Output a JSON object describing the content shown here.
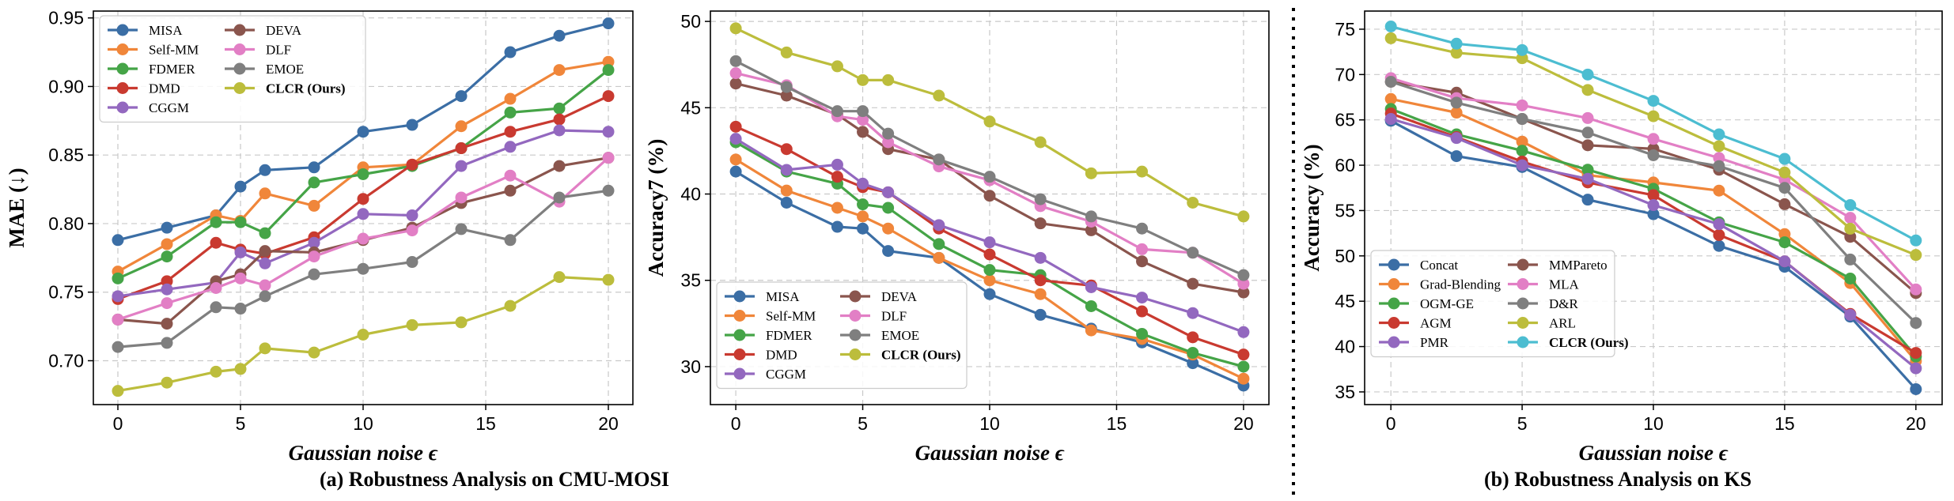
{
  "colors": {
    "blue": "#3b6ea5",
    "orange": "#f0863a",
    "green": "#45a447",
    "red": "#c93a30",
    "purple": "#9368bf",
    "brown": "#8a554d",
    "pink": "#e27fc5",
    "gray": "#7f7f7f",
    "olive": "#bcbd3c",
    "cyan": "#4cbdd1"
  },
  "captions": {
    "a": "(a) Robustness Analysis on CMU-MOSI",
    "b": "(b) Robustness Analysis on KS"
  },
  "chart_data": [
    {
      "id": "mae",
      "type": "line",
      "title": "",
      "xlabel": "Gaussian noise ϵ",
      "ylabel": "MAE (↓)",
      "xlim": [
        -1,
        21
      ],
      "ylim": [
        0.668,
        0.955
      ],
      "xticks": [
        0,
        5,
        10,
        15,
        20
      ],
      "yticks": [
        0.7,
        0.75,
        0.8,
        0.85,
        0.9,
        0.95
      ],
      "ytick_labels": [
        "0.70",
        "0.75",
        "0.80",
        "0.85",
        "0.90",
        "0.95"
      ],
      "legend_position": "top-left",
      "legend_cols": 2,
      "x": [
        0,
        2,
        4,
        5,
        6,
        8,
        10,
        12,
        14,
        16,
        18,
        20
      ],
      "series": [
        {
          "name": "MISA",
          "color": "blue",
          "values": [
            0.788,
            0.797,
            0.806,
            0.827,
            0.839,
            0.841,
            0.867,
            0.872,
            0.893,
            0.925,
            0.937,
            0.946
          ]
        },
        {
          "name": "Self-MM",
          "color": "orange",
          "values": [
            0.765,
            0.785,
            0.806,
            0.802,
            0.822,
            0.813,
            0.841,
            0.843,
            0.871,
            0.891,
            0.912,
            0.918
          ]
        },
        {
          "name": "FDMER",
          "color": "green",
          "values": [
            0.76,
            0.776,
            0.801,
            0.801,
            0.793,
            0.83,
            0.836,
            0.842,
            0.855,
            0.881,
            0.884,
            0.912
          ]
        },
        {
          "name": "DMD",
          "color": "red",
          "values": [
            0.745,
            0.758,
            0.786,
            0.781,
            0.778,
            0.79,
            0.818,
            0.843,
            0.855,
            0.867,
            0.876,
            0.893
          ]
        },
        {
          "name": "CGGM",
          "color": "purple",
          "values": [
            0.747,
            0.752,
            0.757,
            0.779,
            0.771,
            0.786,
            0.807,
            0.806,
            0.842,
            0.856,
            0.868,
            0.867
          ]
        },
        {
          "name": "DEVA",
          "color": "brown",
          "values": [
            0.73,
            0.727,
            0.758,
            0.763,
            0.78,
            0.779,
            0.788,
            0.797,
            0.815,
            0.824,
            0.842,
            0.848
          ]
        },
        {
          "name": "DLF",
          "color": "pink",
          "values": [
            0.73,
            0.742,
            0.753,
            0.76,
            0.755,
            0.776,
            0.789,
            0.795,
            0.819,
            0.835,
            0.816,
            0.848
          ]
        },
        {
          "name": "EMOE",
          "color": "gray",
          "values": [
            0.71,
            0.713,
            0.739,
            0.738,
            0.747,
            0.763,
            0.767,
            0.772,
            0.796,
            0.788,
            0.819,
            0.824
          ]
        },
        {
          "name": "CLCR (Ours)",
          "color": "olive",
          "bold": true,
          "values": [
            0.678,
            0.684,
            0.692,
            0.694,
            0.709,
            0.706,
            0.719,
            0.726,
            0.728,
            0.74,
            0.761,
            0.759
          ]
        }
      ]
    },
    {
      "id": "acc7",
      "type": "line",
      "title": "",
      "xlabel": "Gaussian noise ϵ",
      "ylabel": "Accuracy7 (%)",
      "xlim": [
        -1,
        21
      ],
      "ylim": [
        27.8,
        50.6
      ],
      "xticks": [
        0,
        5,
        10,
        15,
        20
      ],
      "yticks": [
        30,
        35,
        40,
        45,
        50
      ],
      "ytick_labels": [
        "30",
        "35",
        "40",
        "45",
        "50"
      ],
      "legend_position": "bottom-left",
      "legend_cols": 2,
      "x": [
        0,
        2,
        4,
        5,
        6,
        8,
        10,
        12,
        14,
        16,
        18,
        20
      ],
      "series": [
        {
          "name": "MISA",
          "color": "blue",
          "values": [
            41.3,
            39.5,
            38.1,
            38.0,
            36.7,
            36.3,
            34.2,
            33.0,
            32.2,
            31.4,
            30.2,
            28.9
          ]
        },
        {
          "name": "Self-MM",
          "color": "orange",
          "values": [
            42.0,
            40.2,
            39.2,
            38.7,
            38.0,
            36.3,
            35.0,
            34.2,
            32.1,
            31.6,
            30.7,
            29.3
          ]
        },
        {
          "name": "FDMER",
          "color": "green",
          "values": [
            43.0,
            41.3,
            40.6,
            39.4,
            39.2,
            37.1,
            35.6,
            35.3,
            33.5,
            31.9,
            30.8,
            30.0
          ]
        },
        {
          "name": "DMD",
          "color": "red",
          "values": [
            43.9,
            42.6,
            41.0,
            40.4,
            40.1,
            38.0,
            36.5,
            35.0,
            34.7,
            33.2,
            31.7,
            30.7
          ]
        },
        {
          "name": "CGGM",
          "color": "purple",
          "values": [
            43.2,
            41.4,
            41.7,
            40.6,
            40.1,
            38.2,
            37.2,
            36.3,
            34.6,
            34.0,
            33.1,
            32.0
          ]
        },
        {
          "name": "DEVA",
          "color": "brown",
          "values": [
            46.4,
            45.7,
            44.6,
            43.6,
            42.6,
            42.0,
            39.9,
            38.3,
            37.9,
            36.1,
            34.8,
            34.3
          ]
        },
        {
          "name": "DLF",
          "color": "pink",
          "values": [
            47.0,
            46.3,
            44.5,
            44.3,
            43.0,
            41.6,
            40.8,
            39.3,
            38.4,
            36.8,
            36.6,
            34.8
          ]
        },
        {
          "name": "EMOE",
          "color": "gray",
          "values": [
            47.7,
            46.2,
            44.8,
            44.8,
            43.5,
            42.0,
            41.0,
            39.7,
            38.7,
            38.0,
            36.6,
            35.3
          ]
        },
        {
          "name": "CLCR (Ours)",
          "color": "olive",
          "bold": true,
          "values": [
            49.6,
            48.2,
            47.4,
            46.6,
            46.6,
            45.7,
            44.2,
            43.0,
            41.2,
            41.3,
            39.5,
            38.7
          ]
        }
      ]
    },
    {
      "id": "ks",
      "type": "line",
      "title": "",
      "xlabel": "Gaussian noise ϵ",
      "ylabel": "Accuracy (%)",
      "xlim": [
        -1,
        21
      ],
      "ylim": [
        33.6,
        77.0
      ],
      "xticks": [
        0,
        5,
        10,
        15,
        20
      ],
      "yticks": [
        35,
        40,
        45,
        50,
        55,
        60,
        65,
        70,
        75
      ],
      "ytick_labels": [
        "35",
        "40",
        "45",
        "50",
        "55",
        "60",
        "65",
        "70",
        "75"
      ],
      "legend_position": "bottom-left",
      "legend_cols": 2,
      "x": [
        0,
        2.5,
        5,
        7.5,
        10,
        12.5,
        15,
        17.5,
        20
      ],
      "series": [
        {
          "name": "Concat",
          "color": "blue",
          "values": [
            64.9,
            61.0,
            59.8,
            56.2,
            54.6,
            51.1,
            48.8,
            43.3,
            35.3
          ]
        },
        {
          "name": "Grad-Blending",
          "color": "orange",
          "values": [
            67.3,
            65.8,
            62.6,
            58.9,
            58.1,
            57.2,
            52.4,
            47.0,
            38.4
          ]
        },
        {
          "name": "OGM-GE",
          "color": "green",
          "values": [
            66.2,
            63.4,
            61.6,
            59.5,
            57.4,
            53.7,
            51.5,
            47.5,
            38.9
          ]
        },
        {
          "name": "AGM",
          "color": "red",
          "values": [
            65.7,
            63.1,
            60.4,
            58.1,
            56.7,
            52.3,
            49.4,
            43.6,
            39.3
          ]
        },
        {
          "name": "PMR",
          "color": "purple",
          "values": [
            65.1,
            63.0,
            60.0,
            58.5,
            55.6,
            53.5,
            49.4,
            43.5,
            37.6
          ]
        },
        {
          "name": "MMPareto",
          "color": "brown",
          "values": [
            69.2,
            68.0,
            65.1,
            62.2,
            61.8,
            59.5,
            55.7,
            52.1,
            45.9
          ]
        },
        {
          "name": "MLA",
          "color": "pink",
          "values": [
            69.6,
            67.4,
            66.6,
            65.2,
            62.9,
            60.8,
            58.4,
            54.2,
            46.3
          ]
        },
        {
          "name": "D&R",
          "color": "gray",
          "values": [
            69.2,
            66.9,
            65.1,
            63.6,
            61.1,
            59.9,
            57.5,
            49.6,
            42.6
          ]
        },
        {
          "name": "ARL",
          "color": "olive",
          "values": [
            74.0,
            72.4,
            71.8,
            68.3,
            65.4,
            62.1,
            59.2,
            53.0,
            50.1
          ]
        },
        {
          "name": "CLCR (Ours)",
          "color": "cyan",
          "bold": true,
          "values": [
            75.3,
            73.4,
            72.7,
            70.0,
            67.1,
            63.4,
            60.7,
            55.6,
            51.7
          ]
        }
      ]
    }
  ]
}
